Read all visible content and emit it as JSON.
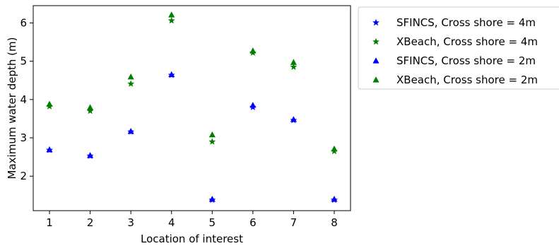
{
  "chart_data": {
    "type": "scatter",
    "title": "",
    "xlabel": "Location of interest",
    "ylabel": "Maximum water depth (m)",
    "xlim": [
      0.6,
      8.4
    ],
    "ylim": [
      1.1,
      6.45
    ],
    "xticks": [
      1,
      2,
      3,
      4,
      5,
      6,
      7,
      8
    ],
    "yticks": [
      2,
      3,
      4,
      5,
      6
    ],
    "grid": false,
    "legend_position": "outside upper right",
    "x": [
      1,
      2,
      3,
      4,
      5,
      6,
      7,
      8
    ],
    "series": [
      {
        "name": "SFINCS, Cross shore = 4m",
        "marker": "star",
        "color": "#0000ff",
        "values": [
          2.68,
          2.53,
          3.16,
          4.64,
          1.38,
          3.8,
          3.46,
          1.38
        ]
      },
      {
        "name": "XBeach, Cross shore = 4m",
        "marker": "star",
        "color": "#008000",
        "values": [
          3.82,
          3.7,
          4.41,
          6.06,
          2.9,
          5.22,
          4.85,
          2.65
        ]
      },
      {
        "name": "SFINCS, Cross shore = 2m",
        "marker": "triangle",
        "color": "#0000ff",
        "values": [
          2.69,
          2.54,
          3.17,
          4.65,
          1.4,
          3.85,
          3.48,
          1.4
        ]
      },
      {
        "name": "XBeach, Cross shore = 2m",
        "marker": "triangle",
        "color": "#008000",
        "values": [
          3.88,
          3.79,
          4.59,
          6.21,
          3.08,
          5.27,
          4.97,
          2.71
        ]
      }
    ]
  }
}
